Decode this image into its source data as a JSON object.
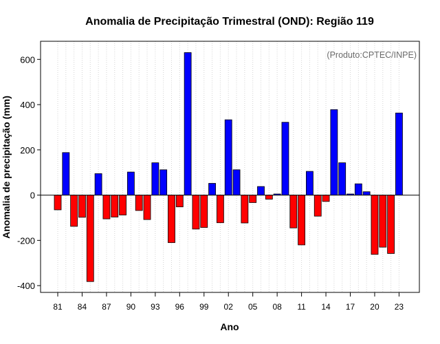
{
  "chart_data": {
    "type": "bar",
    "title": "Anomalia de Precipitação Trimestral (OND): Região 119",
    "xlabel": "Ano",
    "ylabel": "Anomalia de precipitação (mm)",
    "credit": "(Produto:CPTEC/INPE)",
    "ylim": [
      -430,
      680
    ],
    "yticks": [
      -400,
      -200,
      0,
      200,
      400,
      600
    ],
    "ytick_labels": [
      "-400",
      "-200",
      "0",
      "200",
      "400",
      "600"
    ],
    "years": [
      1981,
      1982,
      1983,
      1984,
      1985,
      1986,
      1987,
      1988,
      1989,
      1990,
      1991,
      1992,
      1993,
      1994,
      1995,
      1996,
      1997,
      1998,
      1999,
      2000,
      2001,
      2002,
      2003,
      2004,
      2005,
      2006,
      2007,
      2008,
      2009,
      2010,
      2011,
      2012,
      2013,
      2014,
      2015,
      2016,
      2017,
      2018,
      2019,
      2020,
      2021,
      2022,
      2023
    ],
    "values": [
      -65,
      188,
      -138,
      -98,
      -382,
      95,
      -105,
      -97,
      -88,
      102,
      -68,
      -108,
      143,
      112,
      -210,
      -52,
      630,
      -150,
      -143,
      52,
      -122,
      333,
      112,
      -123,
      -33,
      38,
      -18,
      5,
      322,
      -145,
      -220,
      105,
      -93,
      -28,
      378,
      143,
      5,
      50,
      15,
      -262,
      -230,
      -258,
      363
    ],
    "xtick_labels": [
      "81",
      "84",
      "87",
      "90",
      "93",
      "96",
      "99",
      "02",
      "05",
      "08",
      "11",
      "14",
      "17",
      "20",
      "23"
    ],
    "xtick_years": [
      1981,
      1984,
      1987,
      1990,
      1993,
      1996,
      1999,
      2002,
      2005,
      2008,
      2011,
      2014,
      2017,
      2020,
      2023
    ],
    "colors": {
      "positive": "#0000ff",
      "negative": "#ff0000",
      "grid": "#d3d3d3",
      "credit": "#6a6a6a"
    },
    "grid": "vertical-dotted",
    "credit_position": "top-right"
  }
}
